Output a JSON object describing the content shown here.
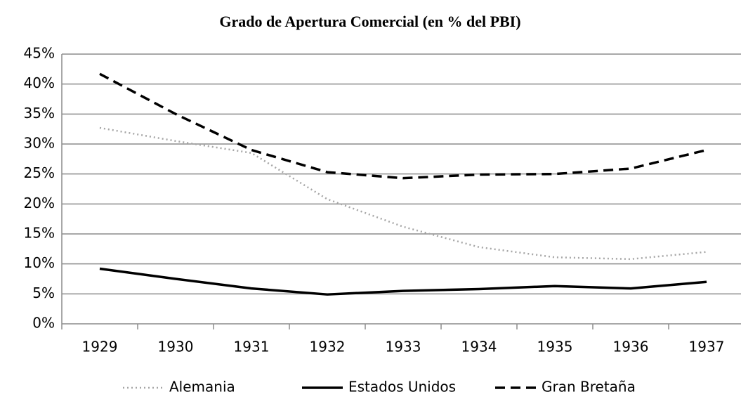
{
  "chart_data": {
    "type": "line",
    "title": "Grado de Apertura Comercial (en % del PBI)",
    "categories": [
      "1929",
      "1930",
      "1931",
      "1932",
      "1933",
      "1934",
      "1935",
      "1936",
      "1937"
    ],
    "series": [
      {
        "name": "Alemania",
        "color": "#a6a6a6",
        "dash": "dotted",
        "values": [
          32.7,
          30.5,
          28.5,
          20.8,
          16.2,
          12.8,
          11.1,
          10.8,
          12.0
        ]
      },
      {
        "name": "Estados Unidos",
        "color": "#000000",
        "dash": "solid",
        "values": [
          9.2,
          7.5,
          5.9,
          4.9,
          5.5,
          5.8,
          6.3,
          5.9,
          7.0
        ]
      },
      {
        "name": "Gran Bretaña",
        "color": "#000000",
        "dash": "dashed",
        "values": [
          41.7,
          35.0,
          29.0,
          25.3,
          24.3,
          24.9,
          25.0,
          25.9,
          29.0
        ]
      }
    ],
    "ylim": [
      0,
      45
    ],
    "yticks": [
      {
        "value": 0,
        "label": "0%"
      },
      {
        "value": 5,
        "label": "5%"
      },
      {
        "value": 10,
        "label": "10%"
      },
      {
        "value": 15,
        "label": "15%"
      },
      {
        "value": 20,
        "label": "20%"
      },
      {
        "value": 25,
        "label": "25%"
      },
      {
        "value": 30,
        "label": "30%"
      },
      {
        "value": 35,
        "label": "35%"
      },
      {
        "value": 40,
        "label": "40%"
      },
      {
        "value": 45,
        "label": "45%"
      }
    ],
    "grid": true,
    "legend": "bottom"
  }
}
